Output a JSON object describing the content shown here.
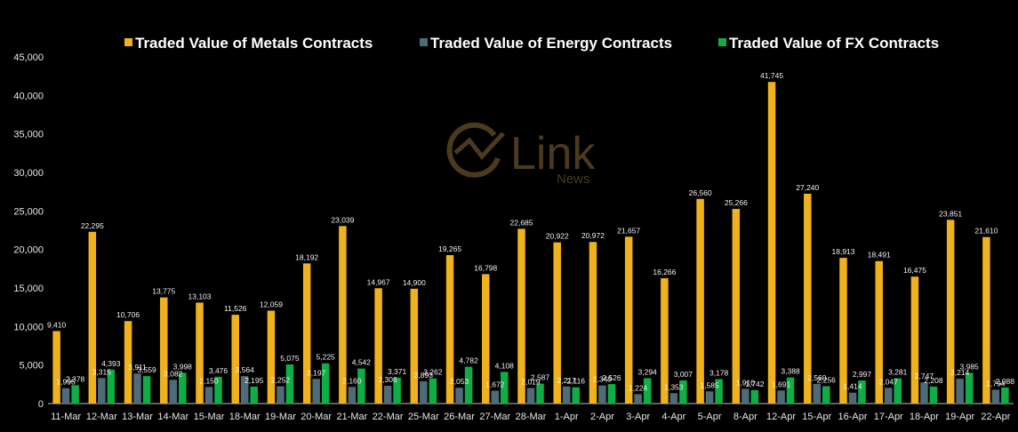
{
  "watermark": {
    "brand": "Link",
    "sub": "News"
  },
  "chart_data": {
    "type": "bar",
    "categories": [
      "11-Mar",
      "12-Mar",
      "13-Mar",
      "14-Mar",
      "15-Mar",
      "18-Mar",
      "19-Mar",
      "20-Mar",
      "21-Mar",
      "22-Mar",
      "25-Mar",
      "26-Mar",
      "27-Mar",
      "28-Mar",
      "1-Apr",
      "2-Apr",
      "3-Apr",
      "4-Apr",
      "5-Apr",
      "8-Apr",
      "12-Apr",
      "15-Apr",
      "16-Apr",
      "17-Apr",
      "18-Apr",
      "19-Apr",
      "22-Apr"
    ],
    "series": [
      {
        "name": "Traded Value of Metals Contracts",
        "color": "#f0b21c",
        "values": [
          9410,
          22295,
          10706,
          13775,
          13103,
          11526,
          12059,
          18192,
          23039,
          14967,
          14900,
          19265,
          16798,
          22685,
          20922,
          20972,
          21657,
          16266,
          26560,
          25266,
          41745,
          27240,
          18913,
          18491,
          16475,
          23851,
          21610
        ],
        "labels": [
          "9,410",
          "22,295",
          "10,706",
          "13,775",
          "13,103",
          "11,526",
          "12,059",
          "18,192",
          "23,039",
          "14,967",
          "14,900",
          "19,265",
          "16,798",
          "22,685",
          "20,922",
          "20,972",
          "21,657",
          "16,266",
          "26,560",
          "25,266",
          "41,745",
          "27,240",
          "18,913",
          "18,491",
          "16,475",
          "23,851",
          "21,610"
        ]
      },
      {
        "name": "Traded Value of Energy Contracts",
        "color": "#4f6b78",
        "values": [
          1995,
          3315,
          3911,
          3082,
          2150,
          3564,
          2252,
          3197,
          2160,
          2306,
          2893,
          2053,
          1672,
          2019,
          2217,
          2349,
          1224,
          1353,
          1585,
          1910,
          1691,
          2560,
          1414,
          2047,
          2747,
          3214,
          1794
        ],
        "labels": [
          "1,995",
          "3,315",
          "3,911",
          "3,082",
          "2,150",
          "3,564",
          "2,252",
          "3,197",
          "2,160",
          "2,306",
          "2,893",
          "2,053",
          "1,672",
          "2,019",
          "2,217",
          "2,349",
          "1,224",
          "1,353",
          "1,585",
          "1,910",
          "1,691",
          "2,560",
          "1,414",
          "2,047",
          "2,747",
          "3,214",
          "1,794"
        ]
      },
      {
        "name": "Traded Value of FX Contracts",
        "color": "#0fae44",
        "values": [
          2378,
          4393,
          3559,
          3998,
          3476,
          2195,
          5075,
          5225,
          4542,
          3371,
          3262,
          4782,
          4108,
          2587,
          2116,
          2526,
          3294,
          3007,
          3178,
          1742,
          3388,
          2256,
          2997,
          3281,
          2208,
          3985,
          2088
        ],
        "labels": [
          "2,378",
          "4,393",
          "3,559",
          "3,998",
          "3,476",
          "2,195",
          "5,075",
          "5,225",
          "4,542",
          "3,371",
          "3,262",
          "4,782",
          "4,108",
          "2,587",
          "2,116",
          "2,526",
          "3,294",
          "3,007",
          "3,178",
          "1,742",
          "3,388",
          "2,256",
          "2,997",
          "3,281",
          "2,208",
          "3,985",
          "2,088"
        ]
      }
    ],
    "ylim": [
      0,
      45000
    ],
    "yticks": [
      0,
      5000,
      10000,
      15000,
      20000,
      25000,
      30000,
      35000,
      40000,
      45000
    ],
    "ytick_labels": [
      "0",
      "5,000",
      "10,000",
      "15,000",
      "20,000",
      "25,000",
      "30,000",
      "35,000",
      "40,000",
      "45,000"
    ],
    "legend_position": "top",
    "grid": false
  }
}
